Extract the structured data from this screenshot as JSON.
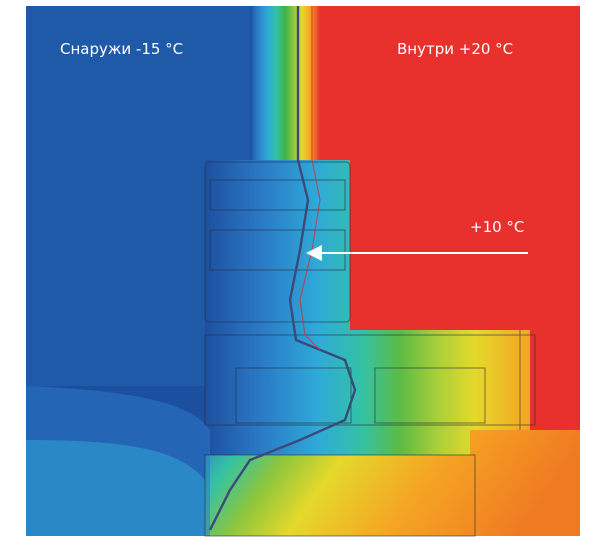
{
  "labels": {
    "outside": "Снаружи -15 °C",
    "inside": "Внутри +20 °C",
    "point": "+10 °C"
  },
  "colors": {
    "outside": "#1f5aa8",
    "inside": "#e8302d",
    "background": "#ffffff",
    "arrow": "#ffffff",
    "isotherm": "#3a4a7a"
  },
  "gradient_stops": [
    "#1d4fa0",
    "#2a7ac6",
    "#2fa9d8",
    "#34c2a5",
    "#3cb34a",
    "#8cc63e",
    "#e5d92b",
    "#f5a623",
    "#f07a22",
    "#e8302d"
  ]
}
